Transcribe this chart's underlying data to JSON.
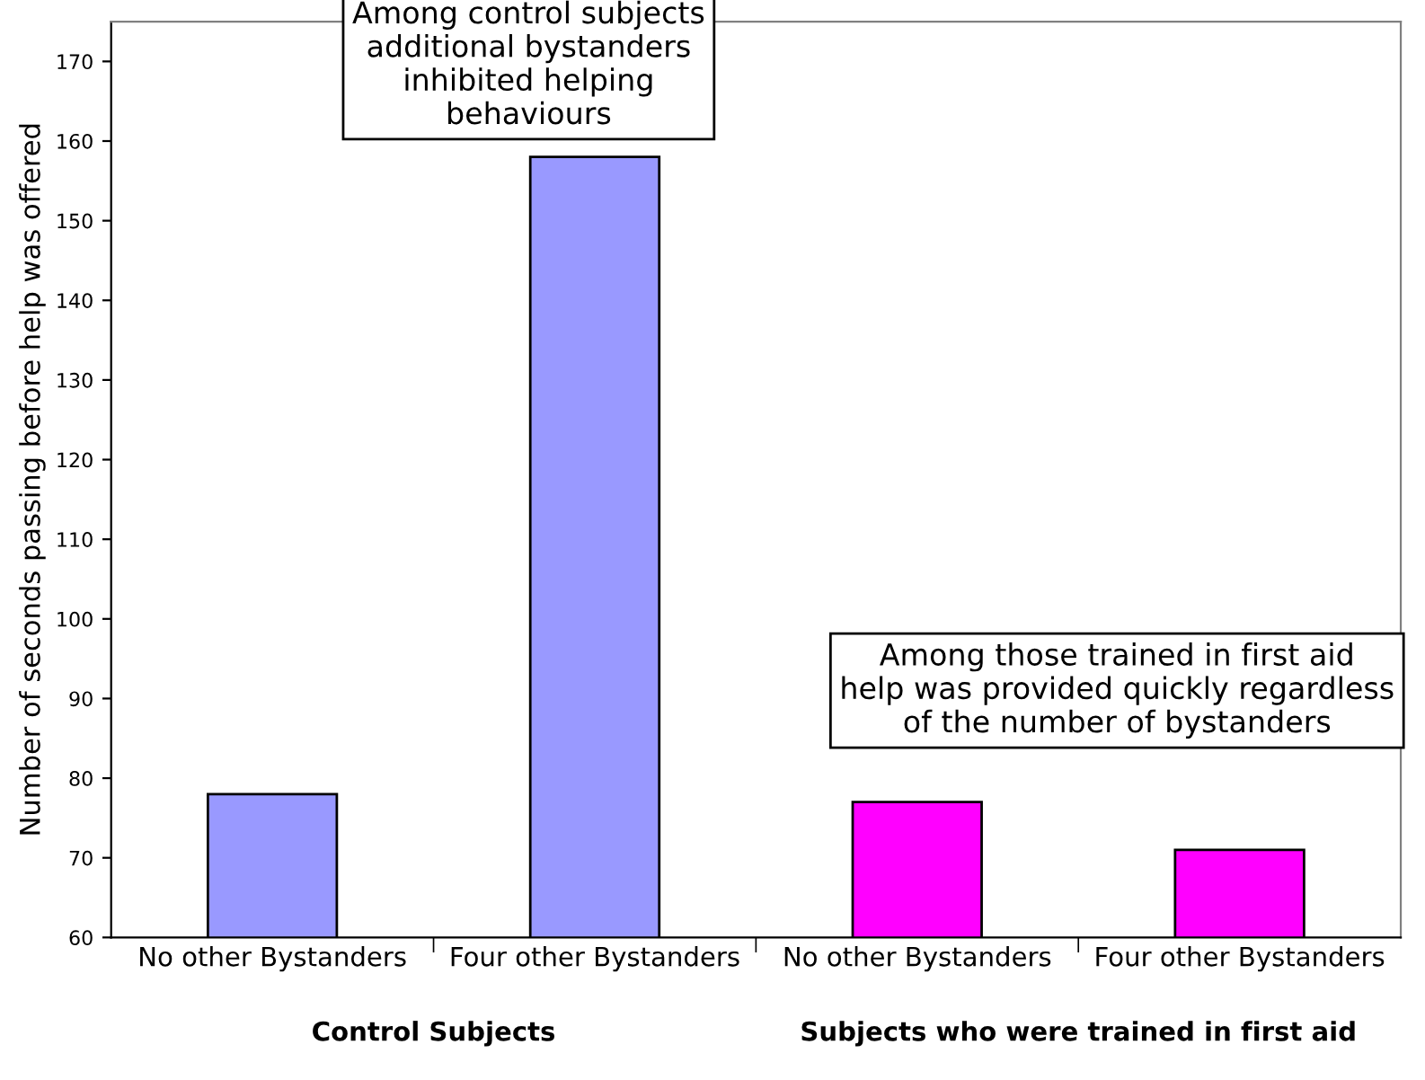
{
  "chart_data": {
    "type": "bar",
    "ylabel": "Number of seconds passing before help was offered",
    "categories": [
      "No other Bystanders",
      "Four other Bystanders",
      "No other Bystanders",
      "Four other Bystanders"
    ],
    "values": [
      78,
      158,
      77,
      71
    ],
    "colors": [
      "#9999ff",
      "#9999ff",
      "#ff00ff",
      "#ff00ff"
    ],
    "ylim": [
      60,
      175
    ],
    "yticks": [
      60,
      70,
      80,
      90,
      100,
      110,
      120,
      130,
      140,
      150,
      160,
      170
    ],
    "grid": false,
    "legend": false,
    "annotations": [
      "Among control subjects additional bystanders inhibited helping behaviours",
      "Among those trained in first aid help was provided quickly regardless of the number of bystanders",
      "Control Subjects",
      "Subjects who were trained in first aid"
    ]
  }
}
